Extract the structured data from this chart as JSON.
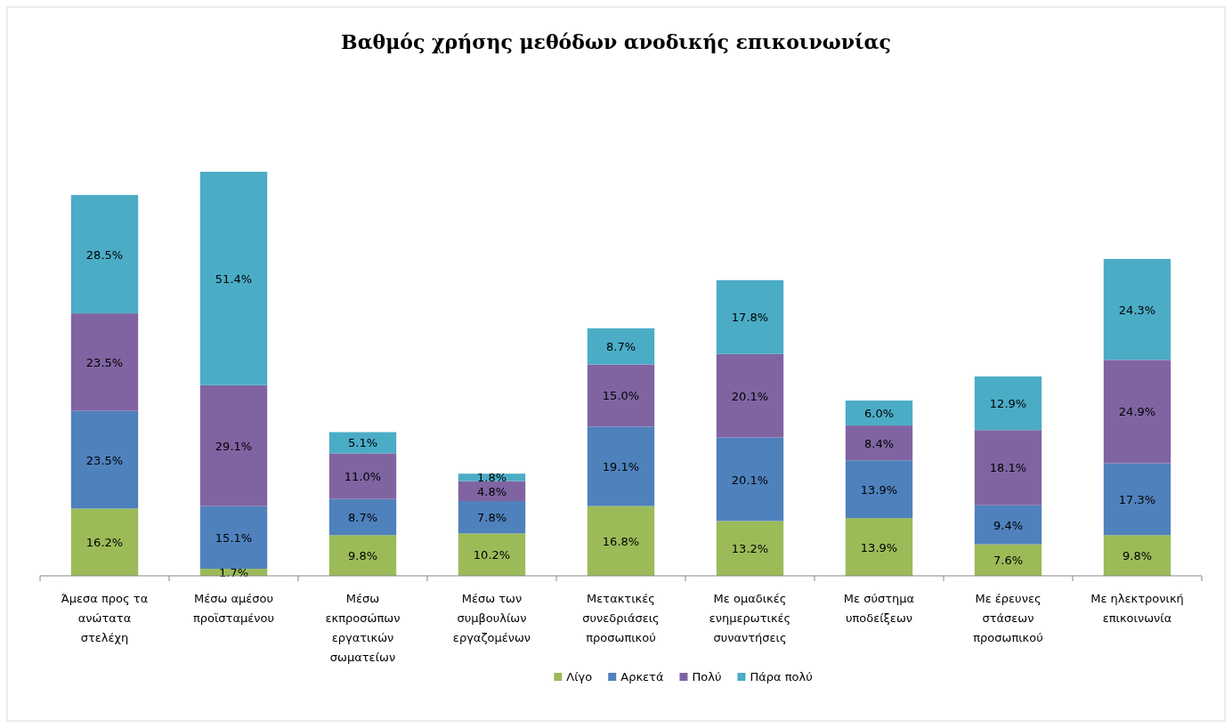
{
  "chart_data": {
    "type": "bar",
    "title": "Βαθμός χρήσης μεθόδων ανοδικής επικοινωνίας",
    "stacked": true,
    "legend": "bottom",
    "categories": [
      "Άμεσα προς τα ανώτατα στελέχη",
      "Μέσω αμέσου προϊσταμένου",
      "Μέσω εκπροσώπων εργατικών σωματείων",
      "Μέσω των συμβουλίων εργαζομένων",
      "Μετακτικές συνεδριάσεις προσωπικού",
      "Με ομαδικές ενημερωτικές συναντήσεις",
      "Με σύστημα υποδείξεων",
      "Με έρευνες στάσεων προσωπικού",
      "Με ηλεκτρονική επικοινωνία"
    ],
    "series": [
      {
        "name": "Λίγο",
        "color": "#9bbb59",
        "values": [
          16.2,
          1.7,
          9.8,
          10.2,
          16.8,
          13.2,
          13.9,
          7.6,
          9.8
        ],
        "value_labels": [
          "16.2%",
          "1.7%",
          "9.8%",
          "10.2%",
          "16.8%",
          "13.2%",
          "13.9%",
          "7.6%",
          "9.8%"
        ]
      },
      {
        "name": "Αρκετά",
        "color": "#4f81bd",
        "values": [
          23.5,
          15.1,
          8.7,
          7.8,
          19.1,
          20.1,
          13.9,
          9.4,
          17.3
        ],
        "value_labels": [
          "23.5%",
          "15.1%",
          "8.7%",
          "7.8%",
          "19.1%",
          "20.1%",
          "13.9%",
          "9.4%",
          "17.3%"
        ]
      },
      {
        "name": "Πολύ",
        "color": "#8064a2",
        "values": [
          23.5,
          29.1,
          11.0,
          4.8,
          15.0,
          20.1,
          8.4,
          18.1,
          24.9
        ],
        "value_labels": [
          "23.5%",
          "29.1%",
          "11.0%",
          "4.8%",
          "15.0%",
          "20.1%",
          "8.4%",
          "18.1%",
          "24.9%"
        ]
      },
      {
        "name": "Πάρα πολύ",
        "color": "#4bacc6",
        "values": [
          28.5,
          51.4,
          5.1,
          1.8,
          8.7,
          17.8,
          6.0,
          12.9,
          24.3
        ],
        "value_labels": [
          "28.5%",
          "51.4%",
          "5.1%",
          "1.8%",
          "8.7%",
          "17.8%",
          "6.0%",
          "12.9%",
          "24.3%"
        ]
      }
    ]
  }
}
